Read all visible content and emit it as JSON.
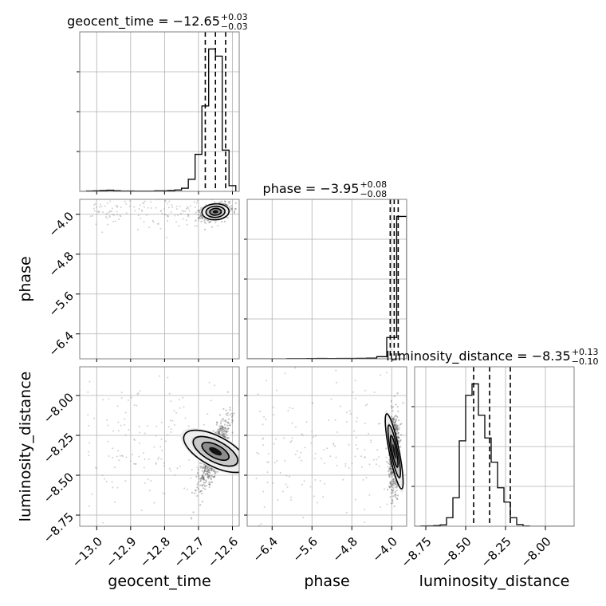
{
  "chart_data": {
    "type": "corner",
    "parameters": [
      {
        "name": "geocent_time",
        "title": {
          "main": "geocent_time = −12.65",
          "upper": "+0.03",
          "lower": "−0.03"
        },
        "axis_label": "geocent_time",
        "lim": [
          -13.05,
          -12.58
        ],
        "ticks": [
          -13.0,
          -12.9,
          -12.8,
          -12.7,
          -12.6
        ],
        "tick_labels": [
          "−13.0",
          "−12.9",
          "−12.8",
          "−12.7",
          "−12.6"
        ],
        "quantiles": [
          -12.68,
          -12.65,
          -12.62
        ],
        "histogram": {
          "edges": [
            -13.05,
            -13.03,
            -13.01,
            -12.99,
            -12.97,
            -12.95,
            -12.93,
            -12.91,
            -12.89,
            -12.87,
            -12.85,
            -12.83,
            -12.81,
            -12.79,
            -12.77,
            -12.75,
            -12.73,
            -12.71,
            -12.69,
            -12.67,
            -12.65,
            -12.63,
            -12.61,
            -12.59
          ],
          "counts": [
            0,
            3,
            4,
            6,
            8,
            5,
            3,
            3,
            2,
            2,
            2,
            4,
            4,
            6,
            10,
            22,
            85,
            260,
            600,
            1000,
            950,
            290,
            40
          ]
        }
      },
      {
        "name": "phase",
        "title": {
          "main": "phase = −3.95",
          "upper": "+0.08",
          "lower": "−0.08"
        },
        "axis_label": "phase",
        "lim": [
          -6.9,
          -3.7
        ],
        "ticks": [
          -6.4,
          -5.6,
          -4.8,
          -4.0
        ],
        "tick_labels": [
          "−6.4",
          "−5.6",
          "−4.8",
          "−4.0"
        ],
        "quantiles": [
          -4.03,
          -3.95,
          -3.87
        ],
        "histogram": {
          "edges": [
            -6.9,
            -6.7,
            -6.5,
            -6.3,
            -6.1,
            -5.9,
            -5.7,
            -5.5,
            -5.3,
            -5.1,
            -4.9,
            -4.7,
            -4.5,
            -4.3,
            -4.1,
            -3.9,
            -3.7
          ],
          "counts": [
            0,
            0,
            0,
            0,
            2,
            3,
            4,
            5,
            4,
            6,
            5,
            7,
            10,
            30,
            300,
            2000
          ]
        }
      },
      {
        "name": "luminosity_distance",
        "title": {
          "main": "luminosity_distance = −8.35",
          "upper": "+0.13",
          "lower": "−0.10"
        },
        "axis_label": "luminosity_distance",
        "lim": [
          -8.82,
          -7.82
        ],
        "ticks": [
          -8.75,
          -8.5,
          -8.25,
          -8.0
        ],
        "tick_labels": [
          "−8.75",
          "−8.50",
          "−8.25",
          "−8.00"
        ],
        "quantiles": [
          -8.45,
          -8.35,
          -8.22
        ],
        "histogram": {
          "edges": [
            -8.82,
            -8.78,
            -8.74,
            -8.7,
            -8.66,
            -8.62,
            -8.58,
            -8.54,
            -8.5,
            -8.46,
            -8.42,
            -8.38,
            -8.34,
            -8.3,
            -8.26,
            -8.22,
            -8.18,
            -8.14,
            -8.1,
            -8.06,
            -8.02,
            -7.98,
            -7.94,
            -7.9,
            -7.86,
            -7.82
          ],
          "counts": [
            0,
            2,
            3,
            5,
            10,
            60,
            200,
            600,
            920,
            1000,
            780,
            620,
            450,
            270,
            170,
            60,
            12,
            2,
            0,
            0,
            0,
            0,
            0,
            0,
            0
          ]
        }
      }
    ],
    "pairs": [
      {
        "x": "geocent_time",
        "y": "phase",
        "peak": [
          -12.65,
          -3.95
        ],
        "sigma": [
          0.02,
          0.08
        ],
        "rho": 0.3
      },
      {
        "x": "geocent_time",
        "y": "luminosity_distance",
        "peak": [
          -12.65,
          -8.35
        ],
        "sigma": [
          0.022,
          0.11
        ],
        "rho": 0.8
      },
      {
        "x": "phase",
        "y": "luminosity_distance",
        "peak": [
          -3.95,
          -8.35
        ],
        "sigma": [
          0.05,
          0.12
        ],
        "rho": 0.1
      }
    ],
    "grid": true
  },
  "colors": {
    "line": "#000000",
    "grid": "#b0b0b0",
    "scatter": "#808080",
    "frame": "#808080"
  }
}
